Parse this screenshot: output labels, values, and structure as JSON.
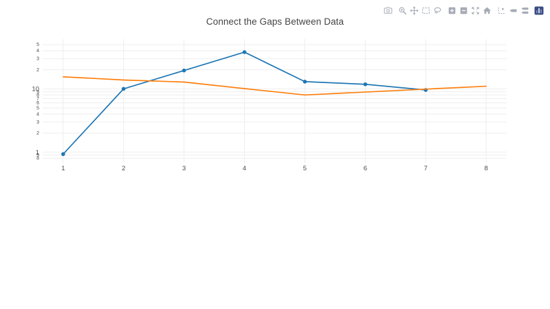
{
  "chart": {
    "title": "Connect the Gaps Between Data"
  },
  "colors": {
    "trace_blue": "#1f77b4",
    "trace_orange": "#ff7f0e",
    "grid": "#eeeeee",
    "tick_label": "#4a4a4a",
    "title": "#444444",
    "modebar_icon": "#a6abb5",
    "plotly_logo_bg": "#3b4c80"
  },
  "modebar": {
    "buttons": [
      "camera-icon",
      "magnifier-icon",
      "pan-arrows-icon",
      "box-select-icon",
      "lasso-icon",
      "zoom-in-icon",
      "zoom-out-icon",
      "autoscale-icon",
      "home-icon",
      "spikelines-icon",
      "tooltip-icon",
      "tooltip-compare-icon",
      "plotly-logo-icon"
    ]
  },
  "chart_data": {
    "type": "line",
    "title": "Connect the Gaps Between Data",
    "xlabel": "",
    "ylabel": "",
    "legend": "none",
    "grid": true,
    "xaxis": {
      "range": [
        0.66,
        8.34
      ],
      "ticks": [
        1,
        2,
        3,
        4,
        5,
        6,
        7,
        8
      ]
    },
    "yaxis": {
      "scale": "log",
      "range": [
        0.68,
        61
      ],
      "ticks": [
        {
          "value": 0.8,
          "label": "8",
          "minor": true
        },
        {
          "value": 0.9,
          "label": "9",
          "minor": true
        },
        {
          "value": 1,
          "label": "1",
          "minor": false
        },
        {
          "value": 2,
          "label": "2",
          "minor": true
        },
        {
          "value": 3,
          "label": "3",
          "minor": true
        },
        {
          "value": 4,
          "label": "4",
          "minor": true
        },
        {
          "value": 5,
          "label": "5",
          "minor": true
        },
        {
          "value": 6,
          "label": "6",
          "minor": true
        },
        {
          "value": 7,
          "label": "7",
          "minor": true
        },
        {
          "value": 8,
          "label": "8",
          "minor": true
        },
        {
          "value": 9,
          "label": "9",
          "minor": true
        },
        {
          "value": 10,
          "label": "10",
          "minor": false
        },
        {
          "value": 20,
          "label": "2",
          "minor": true
        },
        {
          "value": 30,
          "label": "3",
          "minor": true
        },
        {
          "value": 40,
          "label": "4",
          "minor": true
        },
        {
          "value": 50,
          "label": "5",
          "minor": true
        }
      ]
    },
    "series": [
      {
        "id": "trace-0",
        "mode": "lines+markers",
        "color": "#1f77b4",
        "x": [
          1,
          2,
          3,
          4,
          5,
          6,
          7
        ],
        "y": [
          0.93,
          10,
          19.5,
          38,
          13,
          11.8,
          9.6
        ]
      },
      {
        "id": "trace-1",
        "mode": "lines",
        "color": "#ff7f0e",
        "x": [
          1,
          2,
          3,
          4,
          5,
          6,
          7,
          8
        ],
        "y": [
          15.5,
          13.8,
          12.8,
          10.1,
          8.0,
          8.9,
          9.9,
          11.0
        ]
      }
    ]
  }
}
